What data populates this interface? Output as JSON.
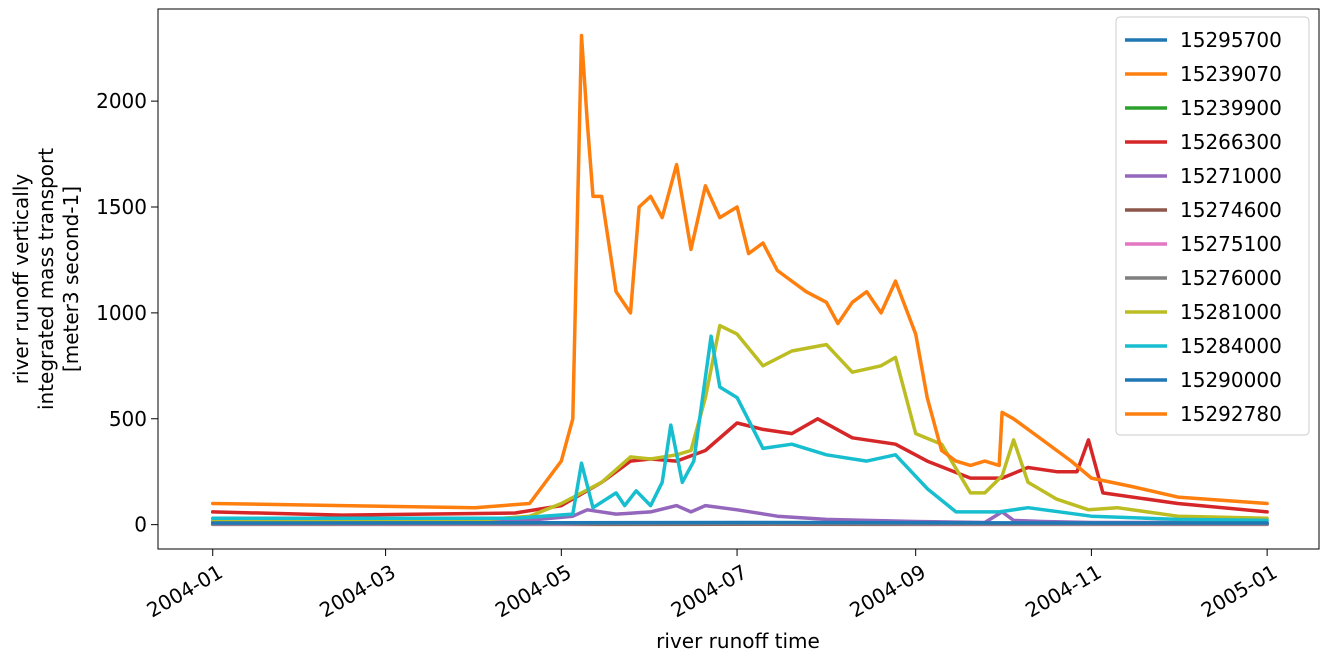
{
  "chart_data": {
    "type": "line",
    "xlabel": "river runoff time",
    "ylabel_lines": [
      "river runoff vertically",
      "integrated mass transport",
      "[meter3 second-1]"
    ],
    "x_tick_labels": [
      "2004-01",
      "2004-03",
      "2004-05",
      "2004-07",
      "2004-09",
      "2004-11",
      "2005-01"
    ],
    "x_ticks": [
      "2004-01-01",
      "2004-03-01",
      "2004-05-01",
      "2004-07-01",
      "2004-09-01",
      "2004-11-01",
      "2005-01-01"
    ],
    "xlim": [
      "2003-12-13",
      "2005-01-19"
    ],
    "y_ticks": [
      0,
      500,
      1000,
      1500,
      2000
    ],
    "y_tick_labels": [
      "0",
      "500",
      "1000",
      "1500",
      "2000"
    ],
    "ylim": [
      -115,
      2435
    ],
    "grid": false,
    "legend_position": "top-right",
    "series": [
      {
        "name": "15295700",
        "color": "#1f77b4",
        "x": [
          "2004-01-01",
          "2004-05-01",
          "2004-07-01",
          "2004-09-01",
          "2004-11-01",
          "2005-01-01"
        ],
        "y": [
          5,
          5,
          5,
          5,
          5,
          5
        ]
      },
      {
        "name": "15239070",
        "color": "#ff7f0e",
        "x": [
          "2004-01-01",
          "2004-05-01",
          "2004-07-01",
          "2004-09-01",
          "2004-11-01",
          "2005-01-01"
        ],
        "y": [
          2,
          2,
          2,
          2,
          2,
          2
        ]
      },
      {
        "name": "15239900",
        "color": "#2ca02c",
        "x": [
          "2004-01-01",
          "2004-05-01",
          "2004-07-01",
          "2004-09-01",
          "2004-11-01",
          "2005-01-01"
        ],
        "y": [
          3,
          3,
          4,
          3,
          3,
          3
        ]
      },
      {
        "name": "15266300",
        "color": "#d62728",
        "x": [
          "2004-01-01",
          "2004-02-15",
          "2004-04-15",
          "2004-05-01",
          "2004-05-15",
          "2004-05-25",
          "2004-06-01",
          "2004-06-10",
          "2004-06-20",
          "2004-07-01",
          "2004-07-10",
          "2004-07-20",
          "2004-07-29",
          "2004-08-10",
          "2004-08-25",
          "2004-09-05",
          "2004-09-20",
          "2004-10-01",
          "2004-10-10",
          "2004-10-20",
          "2004-10-27",
          "2004-10-31",
          "2004-11-05",
          "2004-12-01",
          "2005-01-01"
        ],
        "y": [
          60,
          45,
          55,
          90,
          200,
          300,
          310,
          300,
          350,
          480,
          450,
          430,
          500,
          410,
          380,
          300,
          220,
          220,
          270,
          250,
          250,
          400,
          150,
          100,
          60
        ]
      },
      {
        "name": "15271000",
        "color": "#9467bd",
        "x": [
          "2004-01-01",
          "2004-04-15",
          "2004-05-05",
          "2004-05-10",
          "2004-05-20",
          "2004-06-01",
          "2004-06-10",
          "2004-06-15",
          "2004-06-20",
          "2004-07-01",
          "2004-07-15",
          "2004-08-01",
          "2004-08-15",
          "2004-09-01",
          "2004-09-25",
          "2004-10-01",
          "2004-10-05",
          "2004-10-15",
          "2004-11-01",
          "2005-01-01"
        ],
        "y": [
          15,
          15,
          40,
          70,
          50,
          60,
          90,
          60,
          90,
          70,
          40,
          25,
          20,
          15,
          10,
          60,
          20,
          15,
          10,
          10
        ]
      },
      {
        "name": "15274600",
        "color": "#8c564b",
        "x": [
          "2004-01-01",
          "2004-05-01",
          "2004-07-01",
          "2004-09-01",
          "2004-11-01",
          "2005-01-01"
        ],
        "y": [
          1,
          1,
          2,
          1,
          1,
          1
        ]
      },
      {
        "name": "15275100",
        "color": "#e377c2",
        "x": [
          "2004-01-01",
          "2004-05-01",
          "2004-06-01",
          "2004-07-01",
          "2004-09-01",
          "2004-11-01",
          "2005-01-01"
        ],
        "y": [
          2,
          2,
          8,
          6,
          3,
          2,
          2
        ]
      },
      {
        "name": "15276000",
        "color": "#7f7f7f",
        "x": [
          "2004-01-01",
          "2004-05-01",
          "2004-07-01",
          "2004-09-01",
          "2004-11-01",
          "2005-01-01"
        ],
        "y": [
          3,
          4,
          5,
          4,
          3,
          3
        ]
      },
      {
        "name": "15281000",
        "color": "#bcbd22",
        "x": [
          "2004-01-01",
          "2004-04-01",
          "2004-04-20",
          "2004-05-01",
          "2004-05-15",
          "2004-05-25",
          "2004-06-01",
          "2004-06-10",
          "2004-06-15",
          "2004-06-20",
          "2004-06-25",
          "2004-07-01",
          "2004-07-10",
          "2004-07-20",
          "2004-08-01",
          "2004-08-10",
          "2004-08-20",
          "2004-08-25",
          "2004-09-01",
          "2004-09-10",
          "2004-09-20",
          "2004-09-25",
          "2004-10-01",
          "2004-10-05",
          "2004-10-10",
          "2004-10-20",
          "2004-10-31",
          "2004-11-10",
          "2004-12-01",
          "2005-01-01"
        ],
        "y": [
          20,
          20,
          40,
          100,
          200,
          320,
          310,
          330,
          350,
          600,
          940,
          900,
          750,
          820,
          850,
          720,
          750,
          790,
          430,
          380,
          150,
          150,
          230,
          400,
          200,
          120,
          70,
          80,
          40,
          30
        ]
      },
      {
        "name": "15284000",
        "color": "#17becf",
        "x": [
          "2004-01-01",
          "2004-04-15",
          "2004-05-05",
          "2004-05-08",
          "2004-05-12",
          "2004-05-20",
          "2004-05-23",
          "2004-05-27",
          "2004-06-01",
          "2004-06-05",
          "2004-06-08",
          "2004-06-12",
          "2004-06-16",
          "2004-06-22",
          "2004-06-25",
          "2004-07-01",
          "2004-07-10",
          "2004-07-20",
          "2004-08-01",
          "2004-08-15",
          "2004-08-25",
          "2004-09-05",
          "2004-09-15",
          "2004-09-30",
          "2004-10-10",
          "2004-11-01",
          "2004-12-01",
          "2005-01-01"
        ],
        "y": [
          30,
          30,
          50,
          290,
          80,
          150,
          90,
          160,
          90,
          200,
          470,
          200,
          300,
          890,
          650,
          600,
          360,
          380,
          330,
          300,
          330,
          170,
          60,
          60,
          80,
          40,
          25,
          20
        ]
      },
      {
        "name": "15290000",
        "color": "#1f77b4",
        "x": [
          "2004-01-01",
          "2004-05-01",
          "2004-07-01",
          "2004-09-01",
          "2004-11-01",
          "2005-01-01"
        ],
        "y": [
          8,
          9,
          10,
          9,
          8,
          8
        ]
      },
      {
        "name": "15292780",
        "color": "#ff7f0e",
        "x": [
          "2004-01-01",
          "2004-02-15",
          "2004-04-01",
          "2004-04-20",
          "2004-05-01",
          "2004-05-05",
          "2004-05-08",
          "2004-05-10",
          "2004-05-12",
          "2004-05-15",
          "2004-05-20",
          "2004-05-25",
          "2004-05-28",
          "2004-06-01",
          "2004-06-05",
          "2004-06-10",
          "2004-06-15",
          "2004-06-20",
          "2004-06-25",
          "2004-07-01",
          "2004-07-05",
          "2004-07-10",
          "2004-07-15",
          "2004-07-20",
          "2004-07-25",
          "2004-08-01",
          "2004-08-05",
          "2004-08-10",
          "2004-08-15",
          "2004-08-20",
          "2004-08-25",
          "2004-09-01",
          "2004-09-05",
          "2004-09-10",
          "2004-09-15",
          "2004-09-20",
          "2004-09-25",
          "2004-09-30",
          "2004-10-01",
          "2004-10-05",
          "2004-10-15",
          "2004-10-25",
          "2004-11-01",
          "2004-11-15",
          "2004-12-01",
          "2005-01-01"
        ],
        "y": [
          100,
          90,
          80,
          100,
          300,
          500,
          2310,
          1900,
          1550,
          1550,
          1100,
          1000,
          1500,
          1550,
          1450,
          1700,
          1300,
          1600,
          1450,
          1500,
          1280,
          1330,
          1200,
          1150,
          1100,
          1050,
          950,
          1050,
          1100,
          1000,
          1150,
          900,
          600,
          350,
          300,
          280,
          300,
          280,
          530,
          500,
          400,
          300,
          220,
          180,
          130,
          100
        ]
      }
    ]
  }
}
